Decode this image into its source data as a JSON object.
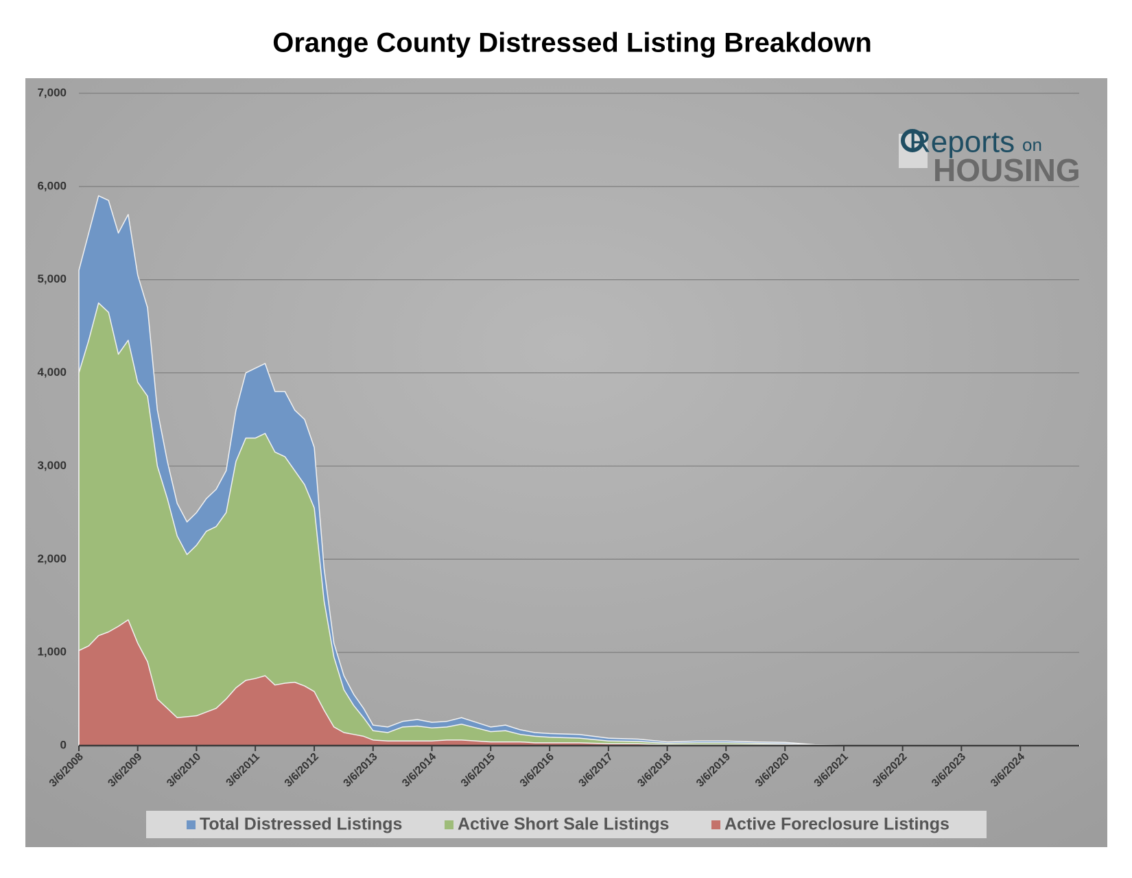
{
  "chart_data": {
    "type": "area",
    "title": "Orange County Distressed Listing Breakdown",
    "x": [
      "3/6/2008",
      "5/6/2008",
      "7/6/2008",
      "9/6/2008",
      "11/6/2008",
      "1/6/2009",
      "3/6/2009",
      "5/6/2009",
      "7/6/2009",
      "9/6/2009",
      "11/6/2009",
      "1/6/2010",
      "3/6/2010",
      "5/6/2010",
      "7/6/2010",
      "9/6/2010",
      "11/6/2010",
      "1/6/2011",
      "3/6/2011",
      "5/6/2011",
      "7/6/2011",
      "9/6/2011",
      "11/6/2011",
      "1/6/2012",
      "3/6/2012",
      "5/6/2012",
      "7/6/2012",
      "9/6/2012",
      "11/6/2012",
      "1/6/2013",
      "3/6/2013",
      "6/6/2013",
      "9/6/2013",
      "12/6/2013",
      "3/6/2014",
      "6/6/2014",
      "9/6/2014",
      "12/6/2014",
      "3/6/2015",
      "6/6/2015",
      "9/6/2015",
      "12/6/2015",
      "3/6/2016",
      "9/6/2016",
      "3/6/2017",
      "9/6/2017",
      "3/6/2018",
      "9/6/2018",
      "3/6/2019",
      "9/6/2019",
      "3/6/2020",
      "9/6/2020",
      "3/6/2021",
      "3/6/2022",
      "3/6/2023",
      "3/6/2024",
      "3/6/2025"
    ],
    "series": [
      {
        "name": "Total Distressed Listings",
        "color": "#6f96c6",
        "values": [
          5100,
          5500,
          5900,
          5850,
          5500,
          5700,
          5050,
          4700,
          3600,
          3050,
          2600,
          2400,
          2500,
          2650,
          2750,
          2950,
          3600,
          4000,
          4050,
          4100,
          3800,
          3800,
          3600,
          3500,
          3200,
          1900,
          1100,
          750,
          550,
          400,
          220,
          200,
          260,
          280,
          250,
          260,
          300,
          250,
          200,
          220,
          170,
          140,
          130,
          120,
          80,
          70,
          40,
          50,
          50,
          40,
          35,
          10,
          5,
          5,
          5,
          5,
          5
        ]
      },
      {
        "name": "Active Short Sale Listings",
        "color": "#9ebc79",
        "values": [
          4000,
          4350,
          4750,
          4650,
          4200,
          4350,
          3900,
          3750,
          3000,
          2650,
          2250,
          2050,
          2150,
          2300,
          2350,
          2500,
          3050,
          3300,
          3300,
          3350,
          3150,
          3100,
          2950,
          2800,
          2550,
          1550,
          950,
          600,
          430,
          300,
          160,
          140,
          200,
          210,
          190,
          200,
          230,
          190,
          150,
          160,
          120,
          100,
          90,
          80,
          50,
          45,
          25,
          30,
          30,
          25,
          20,
          5,
          2,
          2,
          2,
          2,
          2
        ]
      },
      {
        "name": "Active Foreclosure Listings",
        "color": "#c4726b",
        "values": [
          1020,
          1070,
          1180,
          1220,
          1280,
          1350,
          1100,
          900,
          500,
          400,
          300,
          310,
          320,
          360,
          400,
          500,
          620,
          700,
          720,
          750,
          650,
          670,
          680,
          640,
          580,
          380,
          200,
          140,
          120,
          100,
          60,
          50,
          50,
          50,
          50,
          60,
          60,
          50,
          40,
          40,
          40,
          30,
          30,
          30,
          20,
          20,
          10,
          10,
          10,
          10,
          10,
          3,
          2,
          2,
          2,
          2,
          2
        ]
      }
    ],
    "xlim": [
      "3/6/2008",
      "3/6/2025"
    ],
    "xticks": [
      "3/6/2008",
      "3/6/2009",
      "3/6/2010",
      "3/6/2011",
      "3/6/2012",
      "3/6/2013",
      "3/6/2014",
      "3/6/2015",
      "3/6/2016",
      "3/6/2017",
      "3/6/2018",
      "3/6/2019",
      "3/6/2020",
      "3/6/2021",
      "3/6/2022",
      "3/6/2023",
      "3/6/2024"
    ],
    "ylim": [
      0,
      7000
    ],
    "yticks": [
      0,
      {
        "value": 1000,
        "label": "1,000"
      },
      {
        "value": 2000,
        "label": "2,000"
      },
      {
        "value": 3000,
        "label": "3,000"
      },
      {
        "value": 4000,
        "label": "4,000"
      },
      {
        "value": 5000,
        "label": "5,000"
      },
      {
        "value": 6000,
        "label": "6,000"
      },
      {
        "value": 7000,
        "label": "7,000"
      }
    ],
    "grid": true,
    "legend": "bottom"
  },
  "logo": [
    "Reports",
    "on",
    "HOUSING"
  ]
}
